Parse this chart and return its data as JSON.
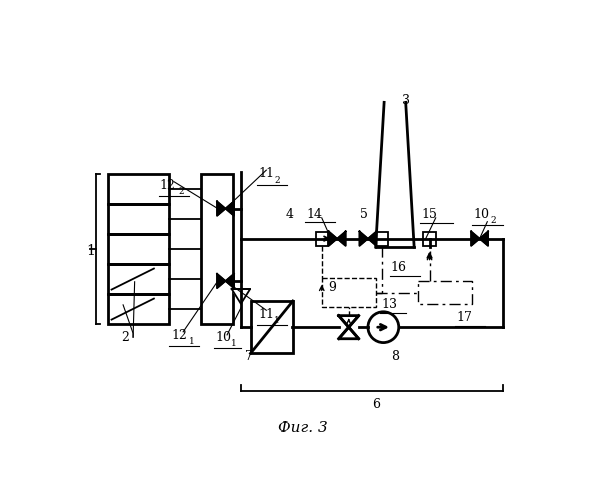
{
  "fig_width": 5.91,
  "fig_height": 5.0,
  "dpi": 100,
  "bg_color": "white",
  "line_color": "black",
  "title": "Фиг. 3",
  "title_fontsize": 11,
  "lw_main": 2.0,
  "lw_thin": 1.3
}
